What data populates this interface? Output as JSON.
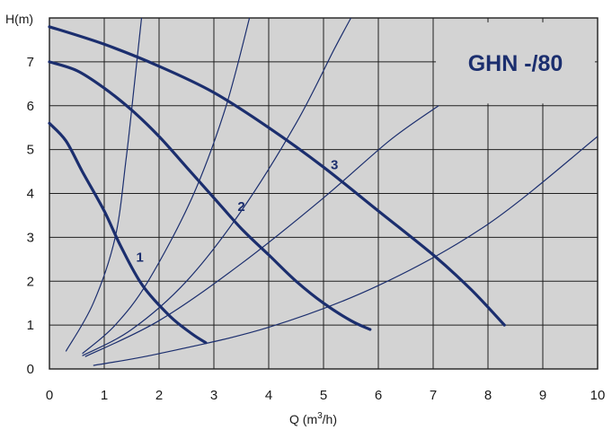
{
  "chart_data": {
    "type": "line",
    "title": "GHN -/80",
    "xlabel_main": "Q (m",
    "xlabel_sup": "3",
    "xlabel_tail": "/h)",
    "ylabel": "H(m)",
    "xlim": [
      0,
      10
    ],
    "ylim": [
      0,
      8
    ],
    "x_ticks": [
      "0",
      "1",
      "2",
      "3",
      "4",
      "5",
      "6",
      "7",
      "8",
      "9",
      "10"
    ],
    "y_ticks": [
      "0",
      "1",
      "2",
      "3",
      "4",
      "5",
      "6",
      "7"
    ],
    "grid": true,
    "colors": {
      "curve": "#1b2e6e",
      "grid": "#1f1f1f",
      "background": "#d3d3d3",
      "title_box": "#d3d3d3"
    },
    "series": [
      {
        "name": "1",
        "points": [
          [
            0,
            5.6
          ],
          [
            0.3,
            5.2
          ],
          [
            0.6,
            4.5
          ],
          [
            1.0,
            3.6
          ],
          [
            1.3,
            2.8
          ],
          [
            1.7,
            1.9
          ],
          [
            2.2,
            1.2
          ],
          [
            2.6,
            0.8
          ],
          [
            2.85,
            0.6
          ]
        ]
      },
      {
        "name": "2",
        "points": [
          [
            0,
            7.0
          ],
          [
            0.5,
            6.8
          ],
          [
            1.0,
            6.4
          ],
          [
            1.5,
            5.9
          ],
          [
            2.0,
            5.3
          ],
          [
            2.5,
            4.6
          ],
          [
            3.0,
            3.9
          ],
          [
            3.5,
            3.2
          ],
          [
            4.0,
            2.6
          ],
          [
            4.5,
            2.0
          ],
          [
            5.0,
            1.5
          ],
          [
            5.5,
            1.1
          ],
          [
            5.85,
            0.9
          ]
        ]
      },
      {
        "name": "3",
        "points": [
          [
            0,
            7.8
          ],
          [
            1.0,
            7.4
          ],
          [
            2.0,
            6.9
          ],
          [
            3.0,
            6.3
          ],
          [
            4.0,
            5.5
          ],
          [
            5.0,
            4.6
          ],
          [
            6.0,
            3.6
          ],
          [
            7.0,
            2.6
          ],
          [
            7.7,
            1.8
          ],
          [
            8.3,
            1.0
          ]
        ]
      }
    ],
    "system_curves": [
      [
        [
          0.3,
          0.4
        ],
        [
          0.8,
          1.5
        ],
        [
          1.2,
          3.0
        ],
        [
          1.4,
          4.8
        ],
        [
          1.55,
          6.5
        ],
        [
          1.68,
          8.0
        ]
      ],
      [
        [
          0.6,
          0.35
        ],
        [
          1.2,
          1.0
        ],
        [
          1.8,
          2.0
        ],
        [
          2.6,
          3.9
        ],
        [
          3.2,
          5.9
        ],
        [
          3.65,
          8.0
        ]
      ],
      [
        [
          0.6,
          0.3
        ],
        [
          1.5,
          0.9
        ],
        [
          2.5,
          2.0
        ],
        [
          3.5,
          3.6
        ],
        [
          4.5,
          5.6
        ],
        [
          5.2,
          7.3
        ],
        [
          5.5,
          8.0
        ]
      ],
      [
        [
          0.65,
          0.28
        ],
        [
          2.0,
          1.1
        ],
        [
          3.5,
          2.4
        ],
        [
          5.0,
          3.9
        ],
        [
          6.2,
          5.2
        ],
        [
          7.1,
          6.0
        ]
      ],
      [
        [
          0.8,
          0.08
        ],
        [
          2.0,
          0.35
        ],
        [
          4.0,
          0.95
        ],
        [
          6.0,
          1.9
        ],
        [
          8.0,
          3.3
        ],
        [
          10.0,
          5.3
        ]
      ]
    ],
    "label_positions": [
      [
        1.65,
        2.45
      ],
      [
        3.5,
        3.6
      ],
      [
        5.2,
        4.55
      ]
    ]
  }
}
